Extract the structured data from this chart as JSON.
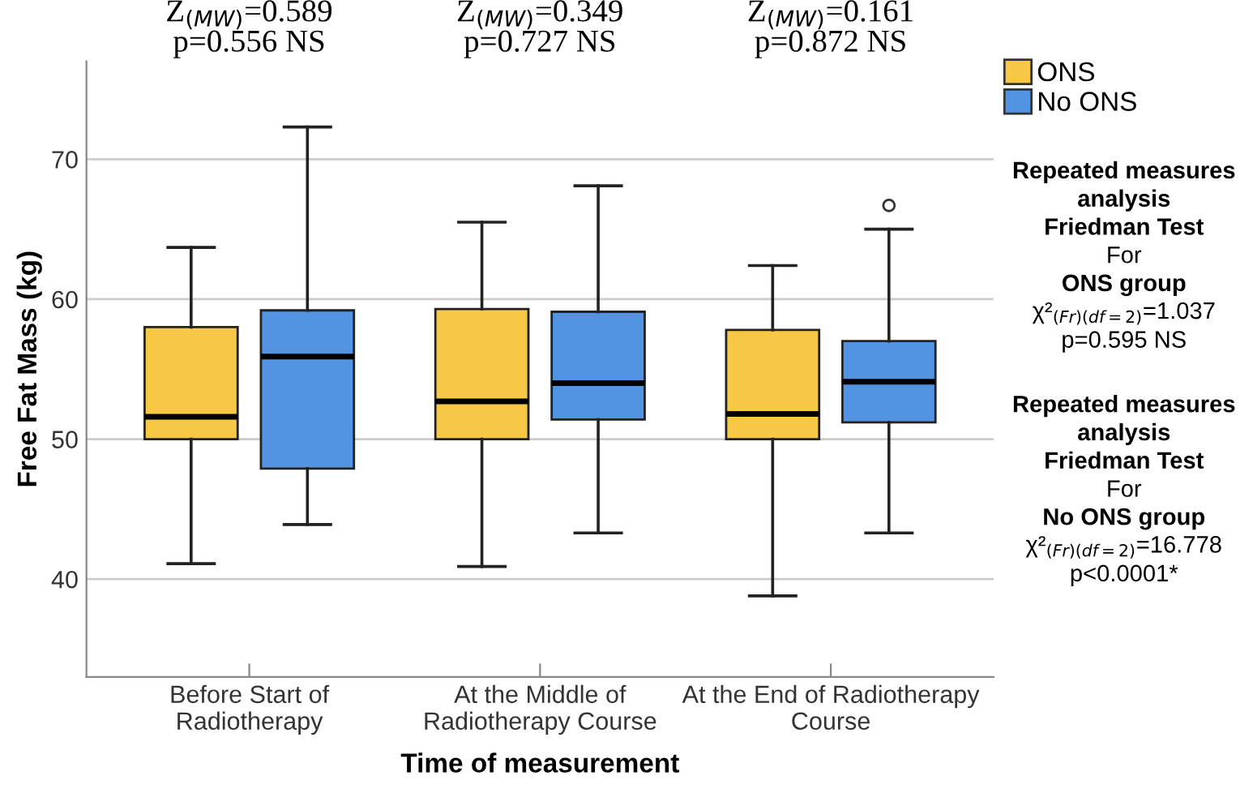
{
  "chart_data": {
    "type": "box",
    "xlabel": "Time of measurement",
    "ylabel": "Free Fat Mass (kg)",
    "categories": [
      "Before Start of\nRadiotherapy",
      "At the Middle of\nRadiotherapy Course",
      "At the End of Radiotherapy\nCourse"
    ],
    "series": [
      {
        "name": "ONS",
        "color": "#f7c846",
        "boxes": [
          {
            "low": 41.1,
            "q1": 50.0,
            "median": 51.6,
            "q3": 58.0,
            "high": 63.7
          },
          {
            "low": 40.9,
            "q1": 50.0,
            "median": 52.7,
            "q3": 59.3,
            "high": 65.5
          },
          {
            "low": 38.8,
            "q1": 50.0,
            "median": 51.8,
            "q3": 57.8,
            "high": 62.4
          }
        ]
      },
      {
        "name": "No ONS",
        "color": "#5294e2",
        "boxes": [
          {
            "low": 43.9,
            "q1": 47.9,
            "median": 55.9,
            "q3": 59.2,
            "high": 72.3
          },
          {
            "low": 43.3,
            "q1": 51.4,
            "median": 54.0,
            "q3": 59.1,
            "high": 68.1
          },
          {
            "low": 43.3,
            "q1": 51.2,
            "median": 54.1,
            "q3": 57.0,
            "high": 65.0,
            "outliers": [
              66.7
            ]
          }
        ]
      }
    ],
    "ylim": [
      33,
      77
    ],
    "yticks": [
      40,
      50,
      60,
      70
    ],
    "grid": "y",
    "legend": "top right",
    "annotations": [
      "Z$_{(MW)}$=0.589\np=0.556 NS",
      "Z$_{(MW)}$=0.349\np=0.727 NS",
      "Z$_{(MW)}$=0.161\np=0.872 NS",
      "Repeated measures\nanalysis\nFriedman Test\nFor\nONS group\nχ²$_{(Fr)(df=2)}$=1.037\np=0.595 NS",
      "Repeated measures\nanalysis\nFriedman Test\nFor\nNo ONS group\nχ²$_{(Fr)(df=2)}$=16.778\np<0.0001*"
    ]
  }
}
